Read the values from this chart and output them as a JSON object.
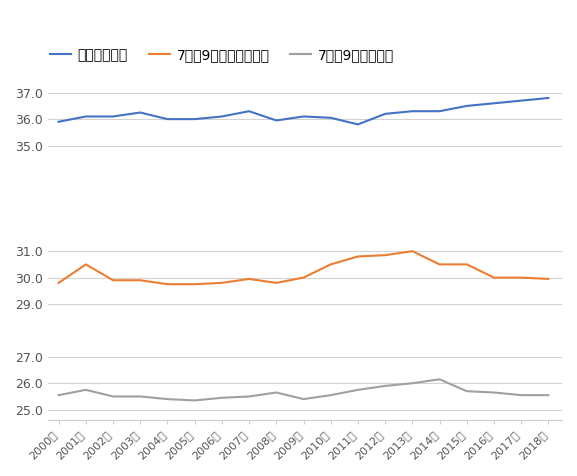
{
  "years": [
    2000,
    2001,
    2002,
    2003,
    2004,
    2005,
    2006,
    2007,
    2008,
    2009,
    2010,
    2011,
    2012,
    2013,
    2014,
    2015,
    2016,
    2017,
    2018
  ],
  "series1_name": "夏の最高気温",
  "series1_color": "#4472c4",
  "series1_values": [
    35.9,
    36.1,
    36.1,
    36.25,
    36.0,
    36.0,
    36.1,
    36.3,
    35.95,
    36.1,
    36.05,
    35.8,
    36.2,
    36.3,
    36.3,
    36.5,
    36.6,
    36.7,
    36.8
  ],
  "series2_name": "7月～9月平均最高気温",
  "series2_color": "#ed7d31",
  "series2_values": [
    29.8,
    30.5,
    29.9,
    29.9,
    29.75,
    29.75,
    29.8,
    29.95,
    29.8,
    30.0,
    30.5,
    30.8,
    30.85,
    31.0,
    30.5,
    30.5,
    30.0,
    30.0,
    29.95
  ],
  "series3_name": "7月～9月平均気温",
  "series3_color": "#a0a0a0",
  "series3_values": [
    25.55,
    25.75,
    25.5,
    25.5,
    25.4,
    25.35,
    25.45,
    25.5,
    25.65,
    25.4,
    25.55,
    25.75,
    25.9,
    26.0,
    26.15,
    25.7,
    25.65,
    25.55,
    25.55
  ],
  "yticks_display": [
    37.0,
    36.0,
    35.0,
    31.0,
    30.0,
    29.0,
    27.0,
    26.0,
    25.0
  ],
  "ylim": [
    24.6,
    37.5
  ],
  "background_color": "#ffffff",
  "grid_color": "#d3d3d3",
  "legend_fontsize": 10,
  "tick_fontsize": 9
}
